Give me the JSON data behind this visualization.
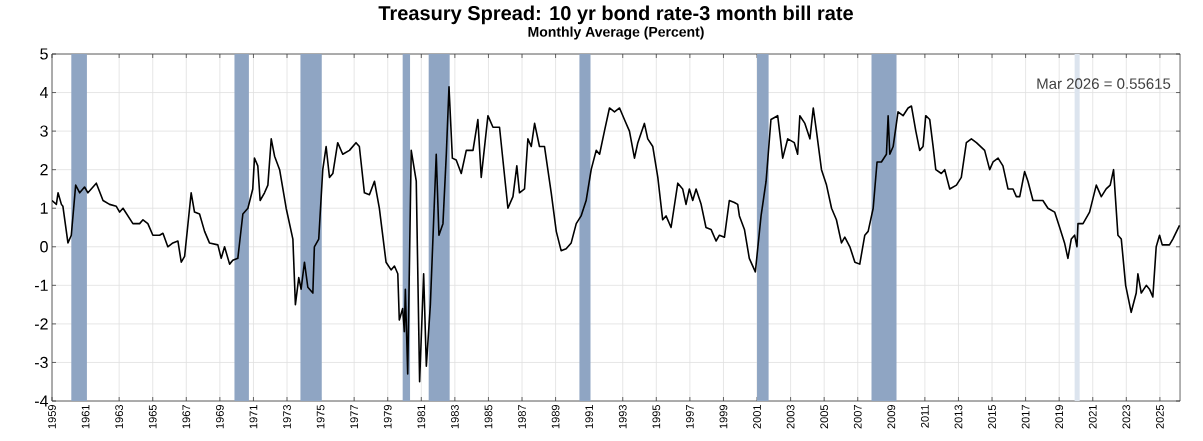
{
  "chart_data": {
    "type": "line",
    "title": "Treasury Spread: 10 yr bond rate-3 month bill rate",
    "subtitle": "Monthly Average (Percent)",
    "annotations": [
      "Mar 2026 = 0.55615"
    ],
    "color": "#000000",
    "line_style": "solid",
    "marker": "none",
    "grid": true,
    "xlim": [
      1959,
      2026.2
    ],
    "ylim": [
      -4,
      5
    ],
    "xticks": [
      1959,
      1961,
      1963,
      1965,
      1967,
      1969,
      1971,
      1973,
      1975,
      1977,
      1979,
      1981,
      1983,
      1985,
      1987,
      1989,
      1991,
      1993,
      1995,
      1997,
      1999,
      2001,
      2003,
      2005,
      2007,
      2009,
      2011,
      2013,
      2015,
      2017,
      2019,
      2021,
      2023,
      2025
    ],
    "yticks": [
      -4,
      -3,
      -2,
      -1,
      0,
      1,
      2,
      3,
      4,
      5
    ],
    "bands": [
      {
        "axis": "x",
        "from": 1960.15,
        "to": 1961.08,
        "color": "#8fa5c3"
      },
      {
        "axis": "x",
        "from": 1969.87,
        "to": 1970.73,
        "color": "#8fa5c3"
      },
      {
        "axis": "x",
        "from": 1973.8,
        "to": 1975.07,
        "color": "#8fa5c3"
      },
      {
        "axis": "x",
        "from": 1979.89,
        "to": 1980.33,
        "color": "#8fa5c3"
      },
      {
        "axis": "x",
        "from": 1981.44,
        "to": 1982.69,
        "color": "#8fa5c3"
      },
      {
        "axis": "x",
        "from": 1990.42,
        "to": 1991.08,
        "color": "#8fa5c3"
      },
      {
        "axis": "x",
        "from": 2001.0,
        "to": 2001.69,
        "color": "#8fa5c3"
      },
      {
        "axis": "x",
        "from": 2007.82,
        "to": 2009.31,
        "color": "#8fa5c3"
      },
      {
        "axis": "x",
        "from": 2019.92,
        "to": 2020.22,
        "color": "#dce4ee"
      }
    ],
    "x": [
      1959.0,
      1959.26,
      1959.36,
      1959.56,
      1959.65,
      1959.95,
      1960.15,
      1960.29,
      1960.41,
      1960.65,
      1960.94,
      1961.14,
      1961.64,
      1962.04,
      1962.43,
      1962.83,
      1963.03,
      1963.23,
      1963.82,
      1964.22,
      1964.42,
      1964.71,
      1965.01,
      1965.41,
      1965.61,
      1965.9,
      1966.2,
      1966.5,
      1966.7,
      1966.9,
      1967.29,
      1967.49,
      1967.79,
      1968.09,
      1968.38,
      1968.88,
      1969.08,
      1969.28,
      1969.58,
      1969.77,
      1970.07,
      1970.37,
      1970.67,
      1970.96,
      1971.06,
      1971.26,
      1971.4,
      1971.66,
      1971.86,
      1972.06,
      1972.26,
      1972.56,
      1972.95,
      1973.35,
      1973.5,
      1973.7,
      1973.84,
      1974.04,
      1974.24,
      1974.54,
      1974.63,
      1974.89,
      1975.13,
      1975.33,
      1975.53,
      1975.73,
      1976.02,
      1976.32,
      1976.72,
      1977.11,
      1977.31,
      1977.61,
      1977.91,
      1978.21,
      1978.5,
      1978.7,
      1978.9,
      1979.2,
      1979.4,
      1979.6,
      1979.69,
      1979.89,
      1979.99,
      1980.05,
      1980.19,
      1980.4,
      1980.7,
      1980.9,
      1981.14,
      1981.3,
      1981.54,
      1981.89,
      1982.05,
      1982.29,
      1982.49,
      1982.65,
      1982.85,
      1983.08,
      1983.38,
      1983.68,
      1984.08,
      1984.37,
      1984.57,
      1984.97,
      1985.27,
      1985.66,
      1986.16,
      1986.46,
      1986.69,
      1986.85,
      1987.15,
      1987.35,
      1987.55,
      1987.75,
      1988.04,
      1988.34,
      1988.74,
      1989.04,
      1989.33,
      1989.63,
      1989.93,
      1990.23,
      1990.52,
      1990.82,
      1991.12,
      1991.42,
      1991.62,
      1991.91,
      1992.21,
      1992.51,
      1992.81,
      1993.1,
      1993.4,
      1993.7,
      1993.9,
      1994.29,
      1994.49,
      1994.79,
      1995.09,
      1995.38,
      1995.58,
      1995.88,
      1996.28,
      1996.57,
      1996.77,
      1996.97,
      1997.17,
      1997.37,
      1997.67,
      1997.96,
      1998.26,
      1998.56,
      1998.76,
      1999.06,
      1999.35,
      1999.65,
      1999.85,
      1999.95,
      2000.25,
      2000.54,
      2000.9,
      2001.24,
      2001.54,
      2001.83,
      2002.23,
      2002.53,
      2002.83,
      2003.22,
      2003.42,
      2003.55,
      2003.85,
      2004.15,
      2004.35,
      2004.54,
      2004.84,
      2005.14,
      2005.44,
      2005.73,
      2006.03,
      2006.23,
      2006.53,
      2006.83,
      2007.12,
      2007.42,
      2007.62,
      2007.92,
      2008.15,
      2008.41,
      2008.71,
      2008.81,
      2008.91,
      2009.11,
      2009.4,
      2009.7,
      2010.0,
      2010.2,
      2010.46,
      2010.69,
      2010.89,
      2011.05,
      2011.29,
      2011.49,
      2011.65,
      2011.98,
      2012.18,
      2012.48,
      2012.88,
      2013.17,
      2013.47,
      2013.77,
      2014.07,
      2014.56,
      2014.86,
      2015.06,
      2015.36,
      2015.65,
      2015.95,
      2016.25,
      2016.45,
      2016.65,
      2016.94,
      2017.14,
      2017.44,
      2017.74,
      2018.03,
      2018.33,
      2018.73,
      2019.03,
      2019.32,
      2019.52,
      2019.72,
      2019.92,
      2020.06,
      2020.12,
      2020.42,
      2020.81,
      2021.21,
      2021.51,
      2021.8,
      2022.04,
      2022.24,
      2022.5,
      2022.7,
      2022.96,
      2023.29,
      2023.59,
      2023.69,
      2023.89,
      2024.19,
      2024.38,
      2024.58,
      2024.78,
      2024.98,
      2025.14,
      2025.57,
      2025.77,
      2026.17
    ],
    "values": [
      1.2,
      1.1,
      1.4,
      1.1,
      1.05,
      0.1,
      0.3,
      1.0,
      1.6,
      1.4,
      1.55,
      1.4,
      1.65,
      1.2,
      1.1,
      1.05,
      0.9,
      1.0,
      0.6,
      0.6,
      0.7,
      0.6,
      0.3,
      0.3,
      0.35,
      0.0,
      0.1,
      0.15,
      -0.4,
      -0.25,
      1.4,
      0.9,
      0.85,
      0.4,
      0.1,
      0.05,
      -0.3,
      0.0,
      -0.45,
      -0.35,
      -0.3,
      0.85,
      1.0,
      1.5,
      2.3,
      2.1,
      1.2,
      1.4,
      1.6,
      2.8,
      2.35,
      2.0,
      1.0,
      0.2,
      -1.5,
      -0.8,
      -1.1,
      -0.4,
      -1.05,
      -1.2,
      0.0,
      0.2,
      2.0,
      2.6,
      1.8,
      1.9,
      2.7,
      2.4,
      2.5,
      2.7,
      2.6,
      1.4,
      1.35,
      1.7,
      1.0,
      0.3,
      -0.4,
      -0.6,
      -0.5,
      -0.7,
      -1.9,
      -1.6,
      -2.2,
      -1.1,
      -3.3,
      2.5,
      1.7,
      -3.5,
      -0.7,
      -3.1,
      -1.5,
      2.4,
      0.3,
      0.6,
      2.4,
      4.15,
      2.3,
      2.25,
      1.9,
      2.5,
      2.5,
      3.3,
      1.8,
      3.4,
      3.1,
      3.1,
      1.0,
      1.3,
      2.1,
      1.4,
      1.5,
      2.8,
      2.6,
      3.2,
      2.6,
      2.6,
      1.4,
      0.4,
      -0.1,
      -0.05,
      0.1,
      0.6,
      0.8,
      1.2,
      2.0,
      2.5,
      2.4,
      3.0,
      3.6,
      3.5,
      3.6,
      3.3,
      3.0,
      2.3,
      2.7,
      3.2,
      2.8,
      2.6,
      1.8,
      0.7,
      0.8,
      0.5,
      1.65,
      1.5,
      1.1,
      1.5,
      1.2,
      1.5,
      1.1,
      0.5,
      0.45,
      0.15,
      0.3,
      0.25,
      1.2,
      1.15,
      1.1,
      0.8,
      0.45,
      -0.3,
      -0.65,
      0.8,
      1.7,
      3.3,
      3.4,
      2.3,
      2.8,
      2.7,
      2.4,
      3.4,
      3.2,
      2.8,
      3.6,
      3.0,
      2.0,
      1.6,
      1.0,
      0.7,
      0.1,
      0.25,
      0.0,
      -0.4,
      -0.45,
      0.3,
      0.4,
      1.0,
      2.2,
      2.2,
      2.4,
      3.4,
      2.4,
      2.6,
      3.5,
      3.4,
      3.6,
      3.65,
      3.0,
      2.5,
      2.6,
      3.4,
      3.3,
      2.6,
      2.0,
      1.9,
      2.0,
      1.5,
      1.6,
      1.8,
      2.7,
      2.8,
      2.7,
      2.5,
      2.0,
      2.2,
      2.3,
      2.1,
      1.5,
      1.5,
      1.3,
      1.3,
      1.95,
      1.7,
      1.2,
      1.2,
      1.2,
      1.0,
      0.9,
      0.5,
      0.1,
      -0.3,
      0.2,
      0.3,
      0.0,
      0.6,
      0.6,
      0.9,
      1.6,
      1.3,
      1.5,
      1.6,
      2.0,
      0.3,
      0.2,
      -1.0,
      -1.7,
      -1.2,
      -0.7,
      -1.2,
      -1.0,
      -1.1,
      -1.3,
      0.0,
      0.3,
      0.05,
      0.05,
      0.2,
      0.55615
    ]
  }
}
